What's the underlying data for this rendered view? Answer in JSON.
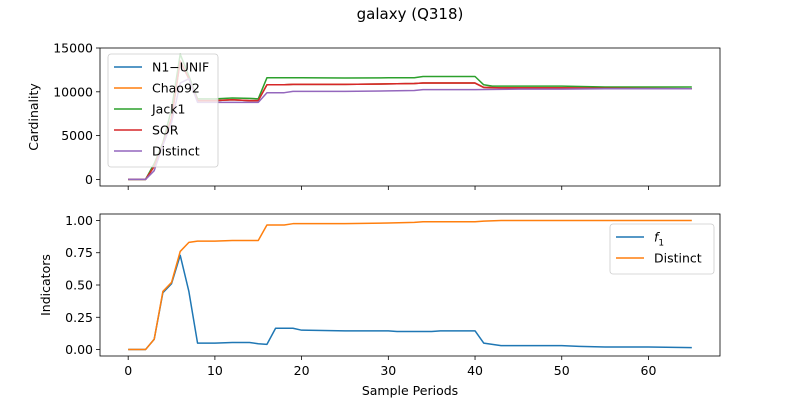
{
  "figure": {
    "suptitle": "galaxy (Q318)"
  },
  "chart_data": [
    {
      "type": "line",
      "xlabel": "",
      "ylabel": "Cardinality",
      "xlim": [
        -3.25,
        68.25
      ],
      "ylim": [
        -750,
        15000
      ],
      "xticks": [
        0,
        10,
        20,
        30,
        40,
        50,
        60
      ],
      "xtick_labels_visible": false,
      "yticks": [
        0,
        5000,
        10000,
        15000
      ],
      "ytick_labels": [
        "0",
        "5000",
        "10000",
        "15000"
      ],
      "legend": "top-left",
      "grid": false,
      "series": [
        {
          "name": "N1−UNIF",
          "color": "#1f77b4",
          "points": [
            [
              0,
              0
            ],
            [
              2,
              0
            ],
            [
              3,
              1500
            ],
            [
              4,
              4000
            ],
            [
              5,
              7000
            ],
            [
              6,
              13500
            ],
            [
              7,
              11500
            ],
            [
              8,
              9000
            ],
            [
              10,
              9000
            ],
            [
              12,
              9100
            ],
            [
              14,
              9000
            ],
            [
              15,
              9000
            ],
            [
              16,
              10800
            ],
            [
              18,
              10800
            ],
            [
              19,
              10850
            ],
            [
              25,
              10850
            ],
            [
              30,
              10900
            ],
            [
              33,
              10950
            ],
            [
              34,
              11000
            ],
            [
              40,
              11000
            ],
            [
              41,
              10500
            ],
            [
              43,
              10450
            ],
            [
              50,
              10450
            ],
            [
              55,
              10400
            ],
            [
              65,
              10350
            ]
          ]
        },
        {
          "name": "Chao92",
          "color": "#ff7f0e",
          "points": [
            [
              0,
              0
            ],
            [
              2,
              0
            ],
            [
              3,
              1500
            ],
            [
              4,
              4000
            ],
            [
              5,
              7000
            ],
            [
              6,
              13500
            ],
            [
              7,
              11500
            ],
            [
              8,
              9000
            ],
            [
              10,
              9000
            ],
            [
              12,
              9100
            ],
            [
              14,
              9000
            ],
            [
              15,
              9000
            ],
            [
              16,
              10800
            ],
            [
              18,
              10800
            ],
            [
              19,
              10850
            ],
            [
              25,
              10850
            ],
            [
              30,
              10900
            ],
            [
              33,
              10950
            ],
            [
              34,
              11000
            ],
            [
              40,
              11000
            ],
            [
              41,
              10500
            ],
            [
              43,
              10450
            ],
            [
              50,
              10450
            ],
            [
              55,
              10400
            ],
            [
              65,
              10350
            ]
          ]
        },
        {
          "name": "Jack1",
          "color": "#2ca02c",
          "points": [
            [
              0,
              0
            ],
            [
              2,
              0
            ],
            [
              3,
              1800
            ],
            [
              4,
              4200
            ],
            [
              5,
              8000
            ],
            [
              6,
              14300
            ],
            [
              7,
              11800
            ],
            [
              8,
              9200
            ],
            [
              10,
              9200
            ],
            [
              12,
              9300
            ],
            [
              14,
              9250
            ],
            [
              15,
              9200
            ],
            [
              16,
              11600
            ],
            [
              20,
              11600
            ],
            [
              25,
              11580
            ],
            [
              30,
              11600
            ],
            [
              33,
              11600
            ],
            [
              34,
              11750
            ],
            [
              40,
              11750
            ],
            [
              41,
              10800
            ],
            [
              42,
              10650
            ],
            [
              50,
              10650
            ],
            [
              55,
              10550
            ],
            [
              65,
              10550
            ]
          ]
        },
        {
          "name": "SOR",
          "color": "#d62728",
          "points": [
            [
              0,
              0
            ],
            [
              2,
              0
            ],
            [
              3,
              1500
            ],
            [
              4,
              4000
            ],
            [
              5,
              7000
            ],
            [
              6,
              13500
            ],
            [
              7,
              11500
            ],
            [
              8,
              9000
            ],
            [
              10,
              9000
            ],
            [
              12,
              9100
            ],
            [
              14,
              9000
            ],
            [
              15,
              9000
            ],
            [
              16,
              10800
            ],
            [
              18,
              10800
            ],
            [
              19,
              10850
            ],
            [
              25,
              10850
            ],
            [
              30,
              10900
            ],
            [
              33,
              10950
            ],
            [
              34,
              11000
            ],
            [
              40,
              11000
            ],
            [
              41,
              10500
            ],
            [
              43,
              10450
            ],
            [
              50,
              10450
            ],
            [
              55,
              10400
            ],
            [
              65,
              10350
            ]
          ]
        },
        {
          "name": "Distinct",
          "color": "#9467bd",
          "points": [
            [
              0,
              0
            ],
            [
              2,
              0
            ],
            [
              3,
              1000
            ],
            [
              4,
              3900
            ],
            [
              5,
              6500
            ],
            [
              6,
              11000
            ],
            [
              7,
              11500
            ],
            [
              8,
              8800
            ],
            [
              10,
              8800
            ],
            [
              12,
              8800
            ],
            [
              15,
              8800
            ],
            [
              16,
              9900
            ],
            [
              18,
              9900
            ],
            [
              19,
              10050
            ],
            [
              25,
              10050
            ],
            [
              30,
              10100
            ],
            [
              33,
              10150
            ],
            [
              34,
              10250
            ],
            [
              40,
              10250
            ],
            [
              45,
              10300
            ],
            [
              50,
              10300
            ],
            [
              55,
              10350
            ],
            [
              65,
              10350
            ]
          ]
        }
      ]
    },
    {
      "type": "line",
      "xlabel": "Sample Periods",
      "ylabel": "Indicators",
      "xlim": [
        -3.25,
        68.25
      ],
      "ylim": [
        -0.05,
        1.05
      ],
      "xticks": [
        0,
        10,
        20,
        30,
        40,
        50,
        60
      ],
      "xtick_labels": [
        "0",
        "10",
        "20",
        "30",
        "40",
        "50",
        "60"
      ],
      "yticks": [
        0,
        0.25,
        0.5,
        0.75,
        1.0
      ],
      "ytick_labels": [
        "0.00",
        "0.25",
        "0.50",
        "0.75",
        "1.00"
      ],
      "legend": "upper-right",
      "grid": false,
      "series": [
        {
          "name": "f₁",
          "legend_label_base": "f",
          "legend_label_sub": "1",
          "color": "#1f77b4",
          "points": [
            [
              0,
              0
            ],
            [
              2,
              0
            ],
            [
              3,
              0.08
            ],
            [
              4,
              0.44
            ],
            [
              5,
              0.51
            ],
            [
              6,
              0.73
            ],
            [
              7,
              0.45
            ],
            [
              8,
              0.05
            ],
            [
              10,
              0.05
            ],
            [
              12,
              0.055
            ],
            [
              14,
              0.055
            ],
            [
              15,
              0.045
            ],
            [
              16,
              0.04
            ],
            [
              17,
              0.165
            ],
            [
              18,
              0.165
            ],
            [
              19,
              0.165
            ],
            [
              20,
              0.15
            ],
            [
              25,
              0.145
            ],
            [
              30,
              0.145
            ],
            [
              31,
              0.14
            ],
            [
              35,
              0.14
            ],
            [
              36,
              0.145
            ],
            [
              40,
              0.145
            ],
            [
              41,
              0.05
            ],
            [
              43,
              0.03
            ],
            [
              50,
              0.03
            ],
            [
              52,
              0.025
            ],
            [
              55,
              0.02
            ],
            [
              60,
              0.02
            ],
            [
              65,
              0.015
            ]
          ]
        },
        {
          "name": "Distinct",
          "color": "#ff7f0e",
          "points": [
            [
              0,
              0
            ],
            [
              2,
              0
            ],
            [
              3,
              0.08
            ],
            [
              4,
              0.45
            ],
            [
              5,
              0.52
            ],
            [
              6,
              0.76
            ],
            [
              7,
              0.83
            ],
            [
              8,
              0.84
            ],
            [
              10,
              0.84
            ],
            [
              12,
              0.845
            ],
            [
              15,
              0.845
            ],
            [
              16,
              0.965
            ],
            [
              18,
              0.965
            ],
            [
              19,
              0.975
            ],
            [
              25,
              0.975
            ],
            [
              30,
              0.98
            ],
            [
              33,
              0.985
            ],
            [
              34,
              0.99
            ],
            [
              40,
              0.99
            ],
            [
              41,
              0.995
            ],
            [
              43,
              1.0
            ],
            [
              65,
              1.0
            ]
          ]
        }
      ]
    }
  ]
}
